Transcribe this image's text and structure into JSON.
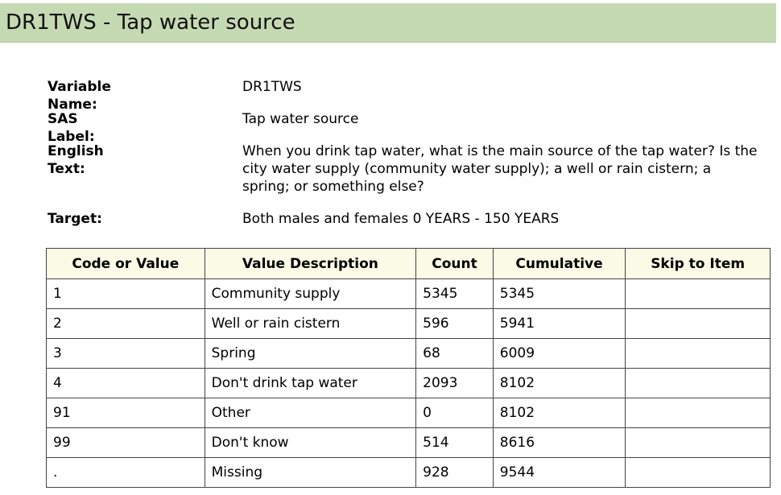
{
  "title": "DR1TWS - Tap water source",
  "info": {
    "variable_name_label": "Variable Name:",
    "variable_name": "DR1TWS",
    "sas_label_label": "SAS Label:",
    "sas_label": "Tap water source",
    "english_text_label": "English Text:",
    "english_text": "When you drink tap water, what is the main source of the tap water? Is the city water supply (community water supply); a well or rain cistern; a spring; or something else?",
    "target_label": "Target:",
    "target": "Both males and females 0 YEARS - 150 YEARS"
  },
  "table": {
    "headers": [
      "Code or Value",
      "Value Description",
      "Count",
      "Cumulative",
      "Skip to Item"
    ],
    "rows": [
      [
        "1",
        "Community supply",
        "5345",
        "5345",
        ""
      ],
      [
        "2",
        "Well or rain cistern",
        "596",
        "5941",
        ""
      ],
      [
        "3",
        "Spring",
        "68",
        "6009",
        ""
      ],
      [
        "4",
        "Don't drink tap water",
        "2093",
        "8102",
        ""
      ],
      [
        "91",
        "Other",
        "0",
        "8102",
        ""
      ],
      [
        "99",
        "Don't know",
        "514",
        "8616",
        ""
      ],
      [
        ".",
        "Missing",
        "928",
        "9544",
        ""
      ]
    ]
  }
}
